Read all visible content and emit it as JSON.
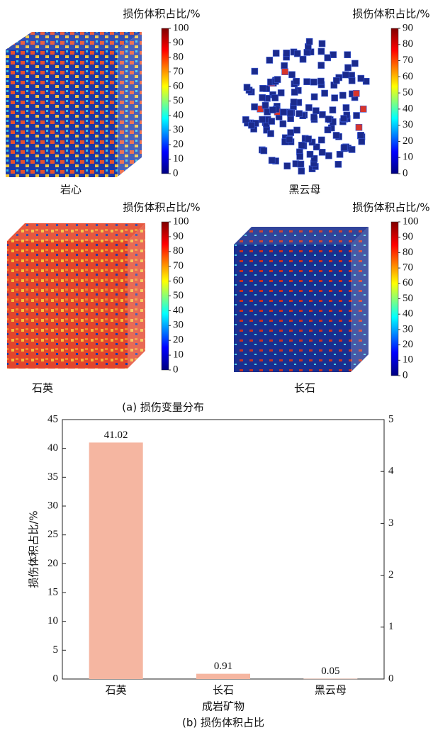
{
  "damage_maps": [
    {
      "label": "岩心",
      "colorbar_title": "损伤体积占比/%",
      "colorbar_lim": [
        0,
        100
      ],
      "colorbar_ticks": [
        0,
        10,
        20,
        30,
        40,
        50,
        60,
        70,
        80,
        90,
        100
      ]
    },
    {
      "label": "黑云母",
      "colorbar_title": "损伤体积占比/%",
      "colorbar_lim": [
        0,
        90
      ],
      "colorbar_ticks": [
        0,
        10,
        20,
        30,
        40,
        50,
        60,
        70,
        80,
        90
      ]
    },
    {
      "label": "石英",
      "colorbar_title": "损伤体积占比/%",
      "colorbar_lim": [
        0,
        100
      ],
      "colorbar_ticks": [
        0,
        10,
        20,
        30,
        40,
        50,
        60,
        70,
        80,
        90,
        100
      ]
    },
    {
      "label": "长石",
      "colorbar_title": "损伤体积占比/%",
      "colorbar_lim": [
        0,
        100
      ],
      "colorbar_ticks": [
        0,
        10,
        20,
        30,
        40,
        50,
        60,
        70,
        80,
        90,
        100
      ]
    }
  ],
  "caption_a": "(a) 损伤变量分布",
  "chart_data": {
    "type": "bar",
    "categories": [
      "石英",
      "长石",
      "黑云母"
    ],
    "values": [
      41.02,
      0.91,
      0.05
    ],
    "color": "#f5b6a1",
    "xlabel": "成岩矿物",
    "ylabel": "损伤体积占比/%",
    "ylim": [
      0,
      45
    ],
    "yticks": [
      0,
      5,
      10,
      15,
      20,
      25,
      30,
      35,
      40,
      45
    ],
    "y2lim": [
      0,
      5
    ],
    "y2ticks": [
      0,
      1,
      2,
      3,
      4,
      5
    ],
    "caption": "(b) 损伤体积占比"
  }
}
